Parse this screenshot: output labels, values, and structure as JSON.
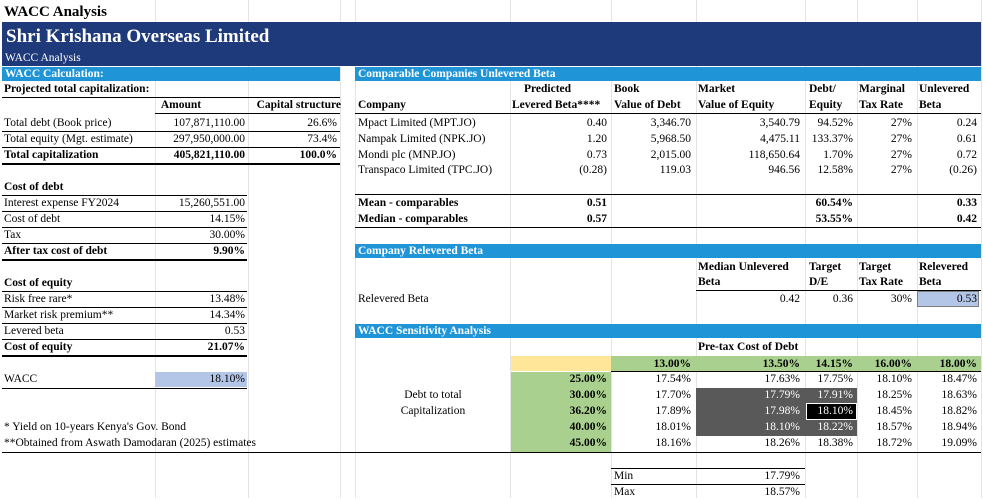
{
  "sheet_title": "WACC Analysis",
  "banner": {
    "company": "Shri Krishana Overseas Limited",
    "subtitle": "WACC Analysis"
  },
  "wacc_calc": {
    "header": "WACC Calculation:",
    "projected": "Projected total capitalization:",
    "col_amount": "Amount",
    "col_structure": "Capital structure",
    "rows": [
      {
        "label": "Total debt (Book price)",
        "amount": "107,871,110.00",
        "pct": "26.6%"
      },
      {
        "label": "Total equity (Mgt. estimate)",
        "amount": "297,950,000.00",
        "pct": "73.4%"
      },
      {
        "label": "Total capitalization",
        "amount": "405,821,110.00",
        "pct": "100.0%"
      }
    ],
    "cost_of_debt": {
      "header": "Cost of debt",
      "rows": [
        {
          "label": "Interest expense FY2024",
          "value": "15,260,551.00"
        },
        {
          "label": "Cost of debt",
          "value": "14.15%"
        },
        {
          "label": "Tax",
          "value": "30.00%"
        },
        {
          "label": "After tax cost of debt",
          "value": "9.90%"
        }
      ]
    },
    "cost_of_equity": {
      "header": "Cost of equity",
      "rows": [
        {
          "label": "Risk free rare*",
          "value": "13.48%"
        },
        {
          "label": "Market risk premium**",
          "value": "14.34%"
        },
        {
          "label": "Levered beta",
          "value": "0.53"
        },
        {
          "label": "Cost of equity",
          "value": "21.07%"
        }
      ]
    },
    "wacc_label": "WACC",
    "wacc_value": "18.10%",
    "footnote1": "* Yield on 10-years Kenya's Gov. Bond",
    "footnote2": "**Obtained from Aswath Damodaran (2025) estimates"
  },
  "comparables": {
    "header": "Comparable Companies Unlevered Beta",
    "columns": {
      "company": "Company",
      "beta_top": "Predicted",
      "beta_bottom": "Levered Beta****",
      "book_top": "Book",
      "book_bottom": "Value of Debt",
      "market_top": "Market",
      "market_bottom": "Value of Equity",
      "de_top": "Debt/",
      "de_bottom": "Equity",
      "tax_top": "Marginal",
      "tax_bottom": "Tax Rate",
      "unlev_top": "Unlevered",
      "unlev_bottom": "Beta"
    },
    "rows": [
      {
        "company": "Mpact Limited (MPT.JO)",
        "beta": "0.40",
        "book": "3,346.70",
        "market": "3,540.79",
        "de": "94.52%",
        "tax": "27%",
        "unlev": "0.24"
      },
      {
        "company": "Nampak Limited (NPK.JO)",
        "beta": "1.20",
        "book": "5,968.50",
        "market": "4,475.11",
        "de": "133.37%",
        "tax": "27%",
        "unlev": "0.61"
      },
      {
        "company": "Mondi plc (MNP.JO)",
        "beta": "0.73",
        "book": "2,015.00",
        "market": "118,650.64",
        "de": "1.70%",
        "tax": "27%",
        "unlev": "0.72"
      },
      {
        "company": "Transpaco Limited (TPC.JO)",
        "beta": "(0.28)",
        "book": "119.03",
        "market": "946.56",
        "de": "12.58%",
        "tax": "27%",
        "unlev": "(0.26)"
      }
    ],
    "mean": {
      "label": "Mean - comparables",
      "beta": "0.51",
      "de": "60.54%",
      "unlev": "0.33"
    },
    "median": {
      "label": "Median - comparables",
      "beta": "0.57",
      "de": "53.55%",
      "unlev": "0.42"
    }
  },
  "relevered": {
    "header": "Company Relevered Beta",
    "col_median_top": "Median Unlevered",
    "col_median_bottom": "Beta",
    "col_target_top": "Target",
    "col_target_bottom": "D/E",
    "col_tax_top": "Target",
    "col_tax_bottom": "Tax Rate",
    "col_rel_top": "Relevered",
    "col_rel_bottom": "Beta",
    "row_label": "Relevered Beta",
    "median": "0.42",
    "target_de": "0.36",
    "tax": "30%",
    "relevered": "0.53"
  },
  "sensitivity": {
    "header": "WACC Sensitivity Analysis",
    "col_title": "Pre-tax Cost of Debt",
    "row_title_1": "Debt to total",
    "row_title_2": "Capitalization",
    "cols": [
      "13.00%",
      "13.50%",
      "14.15%",
      "16.00%",
      "18.00%"
    ],
    "rows": [
      {
        "label": "25.00%",
        "values": [
          "17.54%",
          "17.63%",
          "17.75%",
          "18.10%",
          "18.47%"
        ]
      },
      {
        "label": "30.00%",
        "values": [
          "17.70%",
          "17.79%",
          "17.91%",
          "18.25%",
          "18.63%"
        ]
      },
      {
        "label": "36.20%",
        "values": [
          "17.89%",
          "17.98%",
          "18.10%",
          "18.45%",
          "18.82%"
        ]
      },
      {
        "label": "40.00%",
        "values": [
          "18.01%",
          "18.10%",
          "18.22%",
          "18.57%",
          "18.94%"
        ]
      },
      {
        "label": "45.00%",
        "values": [
          "18.16%",
          "18.26%",
          "18.38%",
          "18.72%",
          "19.09%"
        ]
      }
    ],
    "min_label": "Min",
    "min_value": "17.79%",
    "max_label": "Max",
    "max_value": "18.57%"
  },
  "colors": {
    "banner": "#1f3a7a",
    "section": "#1f95d8",
    "green": "#a9d08e",
    "highlight": "#595959",
    "selected": "#000000",
    "input": "#b4c6e7",
    "yellow": "#ffe699"
  }
}
